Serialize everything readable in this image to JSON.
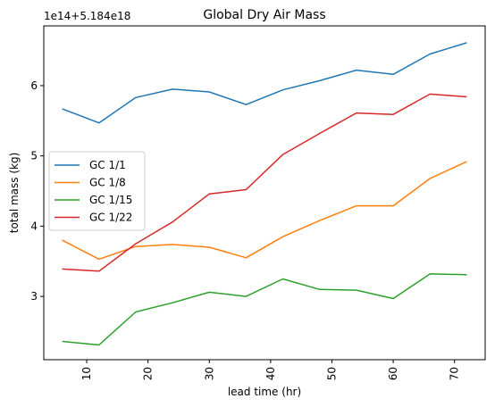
{
  "chart_data": {
    "type": "line",
    "title": "Global Dry Air Mass",
    "xlabel": "lead time (hr)",
    "ylabel": "total mass (kg)",
    "offset_text": "1e14+5.184e18",
    "xlim": [
      3,
      75
    ],
    "ylim": [
      2.1,
      6.85
    ],
    "x_ticks": [
      10,
      20,
      30,
      40,
      50,
      60,
      70
    ],
    "x_tick_labels": [
      "10",
      "20",
      "30",
      "40",
      "50",
      "60",
      "70"
    ],
    "y_ticks": [
      3,
      4,
      5,
      6
    ],
    "y_tick_labels": [
      "3",
      "4",
      "5",
      "6"
    ],
    "grid": false,
    "legend_position": "center-left",
    "x": [
      6,
      12,
      18,
      24,
      30,
      36,
      42,
      48,
      54,
      60,
      66,
      72
    ],
    "series": [
      {
        "name": "GC 1/1",
        "color": "#1f77b4",
        "values": [
          5.67,
          5.47,
          5.83,
          5.95,
          5.91,
          5.73,
          5.94,
          6.07,
          6.22,
          6.16,
          6.45,
          6.61
        ]
      },
      {
        "name": "GC 1/8",
        "color": "#ff7f0e",
        "values": [
          3.8,
          3.53,
          3.71,
          3.74,
          3.7,
          3.55,
          3.85,
          4.08,
          4.29,
          4.29,
          4.68,
          4.92
        ]
      },
      {
        "name": "GC 1/15",
        "color": "#2ca02c",
        "values": [
          2.36,
          2.31,
          2.78,
          2.91,
          3.06,
          3.0,
          3.25,
          3.1,
          3.09,
          2.97,
          3.32,
          3.31
        ]
      },
      {
        "name": "GC 1/22",
        "color": "#d62728",
        "values": [
          3.39,
          3.36,
          3.75,
          4.06,
          4.46,
          4.52,
          5.02,
          5.32,
          5.61,
          5.59,
          5.88,
          5.84
        ]
      }
    ]
  }
}
